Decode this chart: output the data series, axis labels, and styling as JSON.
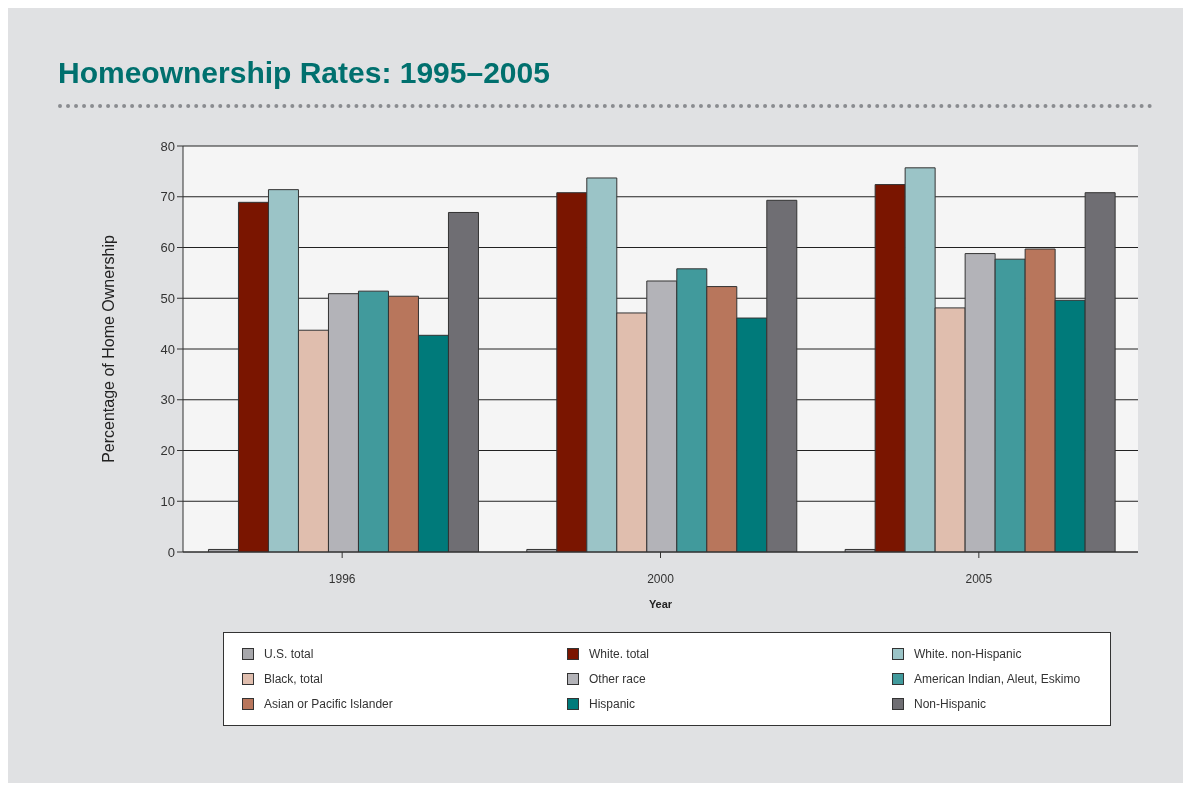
{
  "chart_data": {
    "type": "bar",
    "title": "Homeownership Rates: 1995–2005",
    "xlabel": "Year",
    "ylabel": "Percentage of Home Ownership",
    "categories": [
      "1996",
      "2000",
      "2005"
    ],
    "series": [
      {
        "name": "U.S. total",
        "color": "#a7a7ab",
        "values": [
          0.5,
          0.5,
          0.5
        ]
      },
      {
        "name": "White. total",
        "color": "#7a1500",
        "values": [
          68.9,
          70.8,
          72.4
        ]
      },
      {
        "name": "White. non-Hispanic",
        "color": "#9bc4c7",
        "values": [
          71.4,
          73.7,
          75.7
        ]
      },
      {
        "name": "Black, total",
        "color": "#e0beae",
        "values": [
          43.7,
          47.1,
          48.1
        ]
      },
      {
        "name": "Other race",
        "color": "#b3b3b8",
        "values": [
          50.9,
          53.4,
          58.8
        ]
      },
      {
        "name": "American Indian, Aleut, Eskimo",
        "color": "#419a9c",
        "values": [
          51.4,
          55.8,
          57.7
        ]
      },
      {
        "name": "Asian or Pacific Islander",
        "color": "#b8765c",
        "values": [
          50.4,
          52.3,
          59.7
        ]
      },
      {
        "name": "Hispanic",
        "color": "#007a7a",
        "values": [
          42.7,
          46.1,
          49.6
        ]
      },
      {
        "name": "Non-Hispanic",
        "color": "#6f6e73",
        "values": [
          66.9,
          69.3,
          70.8
        ]
      }
    ],
    "ylim": [
      0,
      80
    ],
    "yticks": [
      0,
      10,
      20,
      30,
      40,
      50,
      60,
      70,
      80
    ],
    "grid": "y",
    "legend": "bottom"
  }
}
